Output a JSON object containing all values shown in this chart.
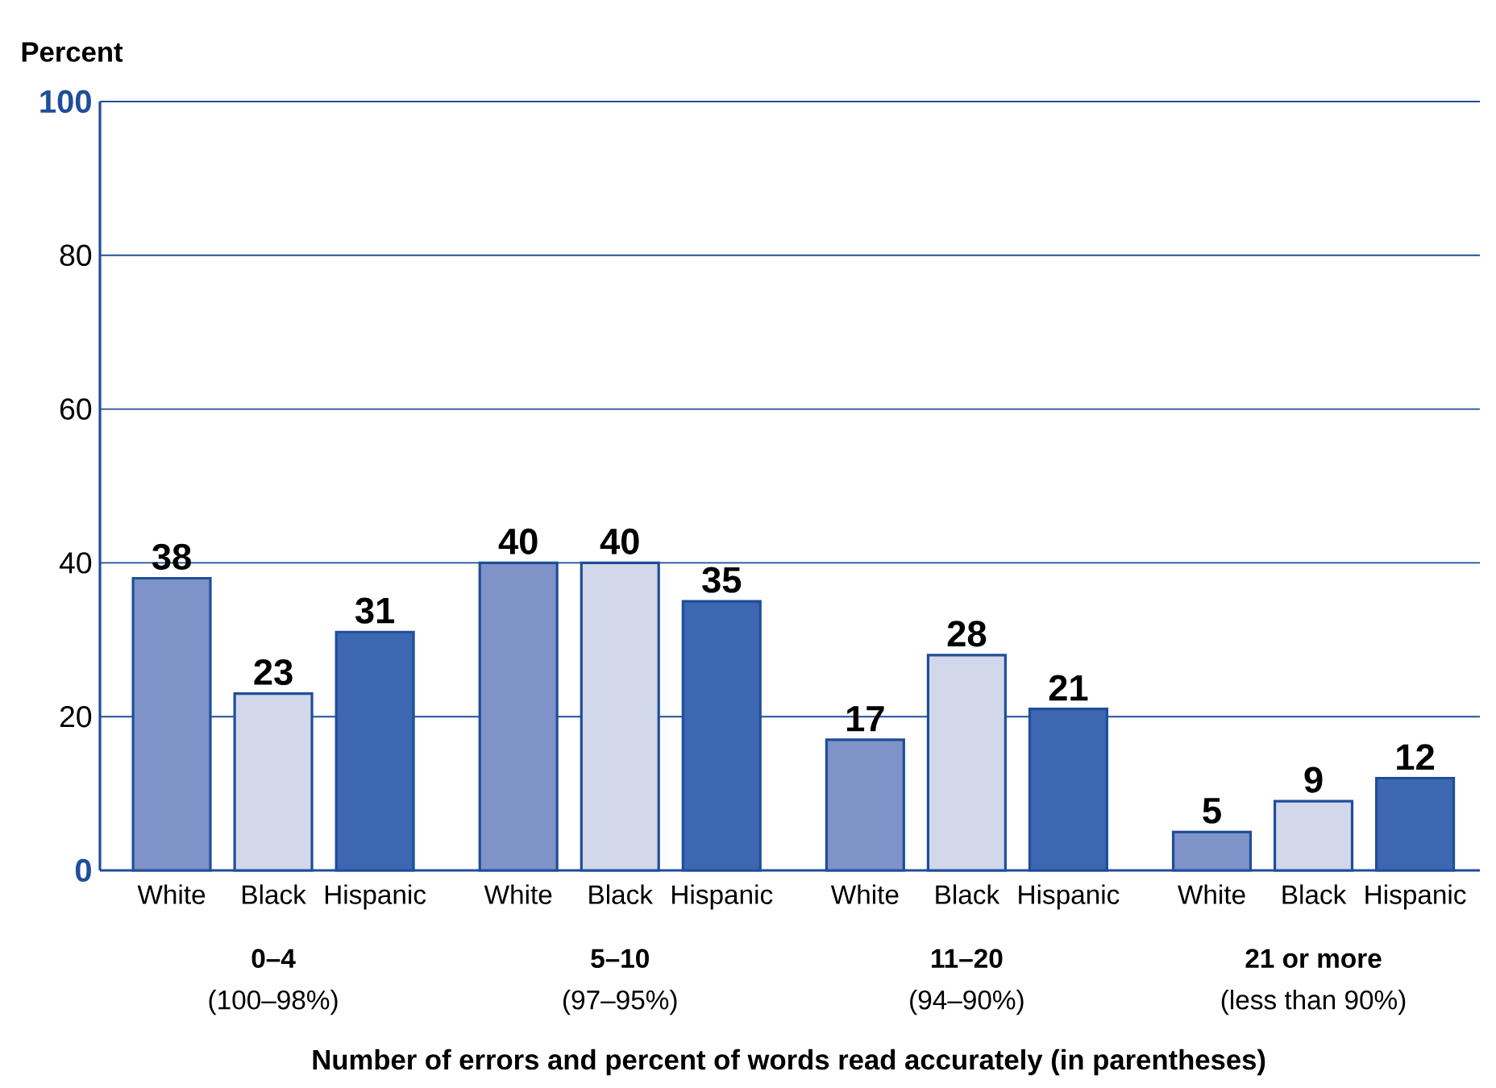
{
  "chart_data": {
    "type": "bar",
    "ylabel": "Percent",
    "xlabel": "Number of errors and percent of words read accurately (in parentheses)",
    "categories": [
      "0–4",
      "5–10",
      "11–20",
      "21 or more"
    ],
    "annotations": [
      "(100–98%)",
      "(97–95%)",
      "(94–90%)",
      "(less than 90%)"
    ],
    "series": [
      {
        "name": "White",
        "color": "#7f93c8",
        "values": [
          38,
          40,
          17,
          5
        ]
      },
      {
        "name": "Black",
        "color": "#d2d7ea",
        "values": [
          23,
          40,
          28,
          9
        ]
      },
      {
        "name": "Hispanic",
        "color": "#3d67b0",
        "values": [
          31,
          35,
          21,
          12
        ]
      }
    ],
    "ylim": [
      0,
      100
    ],
    "yticks": [
      {
        "value": 0,
        "label": "**0**"
      },
      20,
      40,
      60,
      80,
      {
        "value": 100,
        "label": "**100**"
      }
    ],
    "grid": "y",
    "data_labels": true,
    "legend": false
  }
}
